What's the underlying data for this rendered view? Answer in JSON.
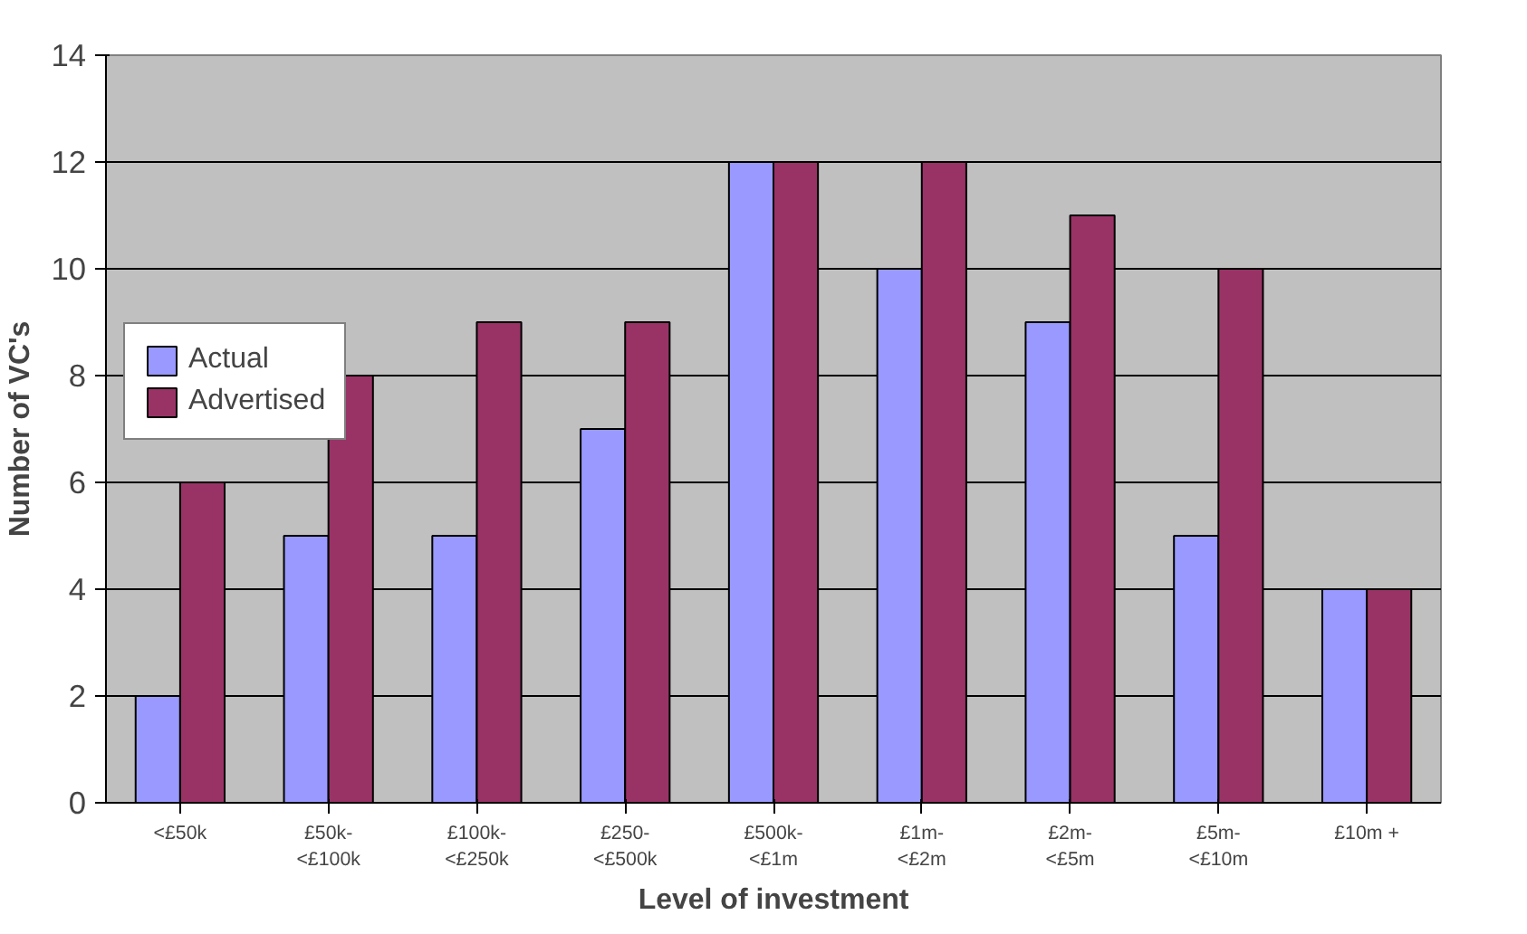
{
  "chart_data": {
    "type": "bar",
    "xlabel": "Level of investment",
    "ylabel": "Number of VC's",
    "categories": [
      "<£50k",
      "£50k-<£100k",
      "£100k-<£250k",
      "£250-<£500k",
      "£500k-<£1m",
      "£1m-<£2m",
      "£2m-<£5m",
      "£5m-<£10m",
      "£10m +"
    ],
    "series": [
      {
        "name": "Actual",
        "color": "#9999ff",
        "values": [
          2,
          5,
          5,
          7,
          12,
          10,
          9,
          5,
          4
        ]
      },
      {
        "name": "Advertised",
        "color": "#993366",
        "values": [
          6,
          8,
          9,
          9,
          12,
          12,
          11,
          10,
          4
        ]
      }
    ],
    "ylim": [
      0,
      14
    ],
    "yticks": [
      0,
      2,
      4,
      6,
      8,
      10,
      12,
      14
    ],
    "grid": "y",
    "legend": "left"
  }
}
